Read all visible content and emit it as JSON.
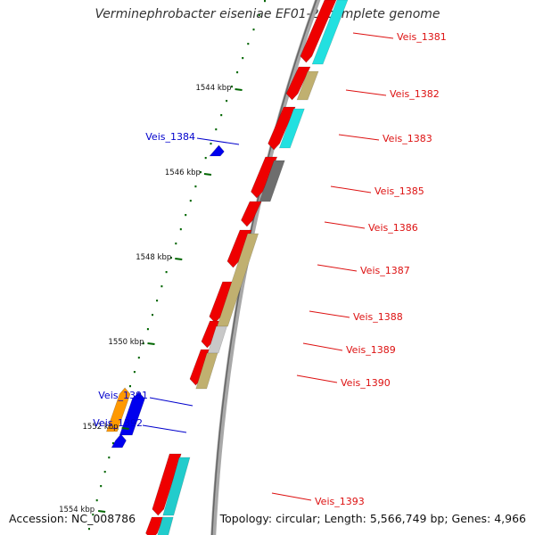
{
  "title": "Verminephrobacter eiseniae EF01-2, complete genome",
  "accession": "Accession: NC_008786",
  "topology": "Topology: circular; Length: 5,566,749 bp; Genes: 4,966",
  "colors": {
    "forward_label": "#dd1111",
    "reverse_label": "#0000cc",
    "cds_forward": "#ee0000",
    "cds_reverse": "#0000ee",
    "tick": "#006600",
    "backbone": "#888888"
  },
  "scale_ticks": [
    "1544 kbp",
    "1546 kbp",
    "1548 kbp",
    "1550 kbp",
    "1552 kbp",
    "1554 kbp"
  ],
  "genes": [
    {
      "label": "Veis_1381",
      "strand": "+"
    },
    {
      "label": "Veis_1382",
      "strand": "+"
    },
    {
      "label": "Veis_1383",
      "strand": "+"
    },
    {
      "label": "Veis_1384",
      "strand": "-"
    },
    {
      "label": "Veis_1385",
      "strand": "+"
    },
    {
      "label": "Veis_1386",
      "strand": "+"
    },
    {
      "label": "Veis_1387",
      "strand": "+"
    },
    {
      "label": "Veis_1388",
      "strand": "+"
    },
    {
      "label": "Veis_1389",
      "strand": "+"
    },
    {
      "label": "Veis_1390",
      "strand": "+"
    },
    {
      "label": "Veis_1391",
      "strand": "-"
    },
    {
      "label": "Veis_1392",
      "strand": "-"
    },
    {
      "label": "Veis_1393",
      "strand": "+"
    }
  ]
}
